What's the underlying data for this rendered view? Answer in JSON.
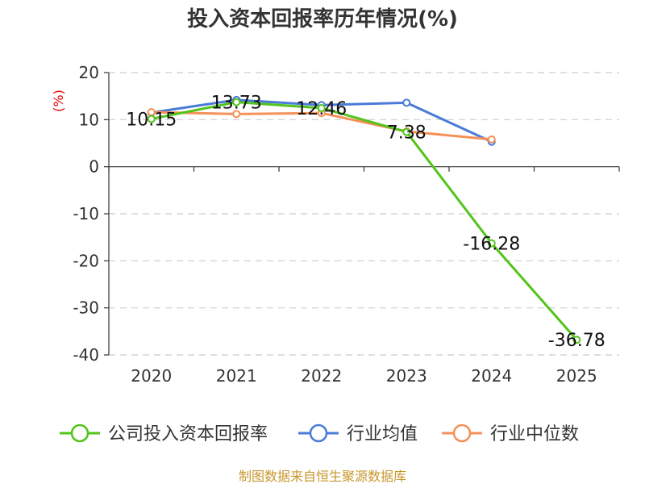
{
  "chart_data": {
    "type": "line",
    "title": "投入资本回报率历年情况(%)",
    "unit_label": "(%)",
    "categories": [
      "2020",
      "2021",
      "2022",
      "2023",
      "2024",
      "2025"
    ],
    "y_ticks": [
      "20",
      "10",
      "0",
      "-10",
      "-20",
      "-30",
      "-40"
    ],
    "ylim": [
      -40,
      20
    ],
    "grid": true,
    "legend_position": "bottom",
    "series": [
      {
        "name": "公司投入资本回报率",
        "color": "#52c41a",
        "values": [
          10.15,
          13.73,
          12.46,
          7.38,
          -16.28,
          -36.78
        ],
        "labels": [
          "10.15",
          "13.73",
          "12.46",
          "7.38",
          "-16.28",
          "-36.78"
        ]
      },
      {
        "name": "行业均值",
        "color": "#4a7bd8",
        "values": [
          11.5,
          14.2,
          13.1,
          13.6,
          5.3,
          null
        ]
      },
      {
        "name": "行业中位数",
        "color": "#f59058",
        "values": [
          11.6,
          11.2,
          11.4,
          7.5,
          5.8,
          null
        ]
      }
    ],
    "source": "制图数据来自恒生聚源数据库"
  }
}
